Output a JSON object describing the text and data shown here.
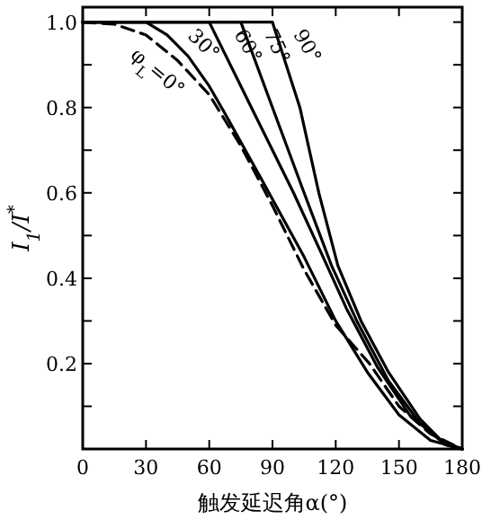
{
  "chart_data": {
    "type": "line",
    "xlabel": "触发延迟角α(°)",
    "ylabel": "I$_{1}$/I$^{*}$",
    "xlim": [
      0,
      180
    ],
    "ylim": [
      0,
      1.035
    ],
    "xticks": [
      0,
      30,
      60,
      90,
      120,
      150,
      180
    ],
    "yticks": [
      {
        "value": 0.1,
        "label": null
      },
      0.2,
      {
        "value": 0.3,
        "label": null
      },
      0.4,
      {
        "value": 0.5,
        "label": null
      },
      0.6,
      {
        "value": 0.7,
        "label": null
      },
      0.8,
      {
        "value": 0.9,
        "label": null
      },
      {
        "value": 1,
        "label": "1.0"
      }
    ],
    "grid": false,
    "marker": "none",
    "legend": "top",
    "series": [
      {
        "name": "φ$_{L}$=0°",
        "color": "#000000",
        "line_style": "dashed",
        "x": [
          0,
          15,
          30,
          45,
          60,
          75,
          90,
          105,
          120,
          136,
          150,
          165,
          180
        ],
        "values": [
          1,
          0.995,
          0.97,
          0.91,
          0.83,
          0.71,
          0.57,
          0.42,
          0.29,
          0.2,
          0.1,
          0.035,
          0
        ]
      },
      {
        "name": "30°",
        "color": "#000000",
        "line_style": "solid",
        "x": [
          0,
          30,
          40,
          50,
          60,
          67,
          85,
          105,
          120,
          135,
          150,
          165,
          180
        ],
        "values": [
          1,
          1,
          0.97,
          0.92,
          0.85,
          0.79,
          0.63,
          0.45,
          0.3,
          0.18,
          0.08,
          0.02,
          0
        ]
      },
      {
        "name": "60°",
        "color": "#000000",
        "line_style": "solid",
        "x": [
          0,
          60,
          80,
          100,
          114,
          125,
          140,
          155,
          170,
          180
        ],
        "values": [
          1,
          1,
          0.8,
          0.6,
          0.45,
          0.33,
          0.19,
          0.08,
          0.02,
          0
        ]
      },
      {
        "name": "75°",
        "color": "#000000",
        "line_style": "solid",
        "x": [
          0,
          75,
          90,
          105,
          118,
          130,
          145,
          160,
          172,
          180
        ],
        "values": [
          1,
          1,
          0.8,
          0.6,
          0.43,
          0.3,
          0.16,
          0.06,
          0.01,
          0
        ]
      },
      {
        "name": "90°",
        "color": "#000000",
        "line_style": "solid",
        "x": [
          0,
          90,
          103,
          112,
          121,
          132,
          145,
          160,
          172,
          180
        ],
        "values": [
          1,
          1,
          0.8,
          0.6,
          0.43,
          0.3,
          0.18,
          0.07,
          0.01,
          0
        ]
      }
    ]
  }
}
